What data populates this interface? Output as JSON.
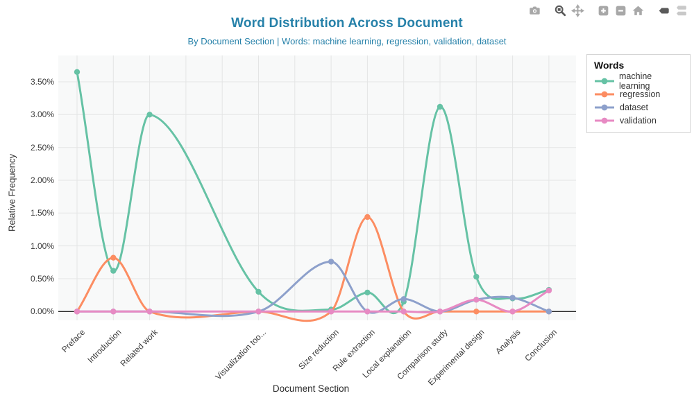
{
  "header": {
    "title": "Word Distribution Across Document",
    "subtitle": "By Document Section | Words: machine learning, regression, validation, dataset",
    "title_color": "#2681a9"
  },
  "modebar": {
    "icons": [
      {
        "name": "camera",
        "active": false
      },
      {
        "name": "zoom",
        "active": true
      },
      {
        "name": "pan",
        "active": false
      },
      {
        "name": "zoom-in",
        "active": false
      },
      {
        "name": "zoom-out",
        "active": false
      },
      {
        "name": "autoscale-home",
        "active": false
      },
      {
        "name": "hover-closest",
        "active": true
      },
      {
        "name": "hover-compare",
        "active": false
      }
    ],
    "color_inactive": "#a8a8a8",
    "color_active": "#5a5a5a"
  },
  "legend": {
    "title": "Words",
    "items": [
      {
        "label": "machine learning",
        "color": "#66c2a5"
      },
      {
        "label": "regression",
        "color": "#fc8d62"
      },
      {
        "label": "dataset",
        "color": "#8da0cb"
      },
      {
        "label": "validation",
        "color": "#e78ac3"
      }
    ]
  },
  "chart_data": {
    "type": "line",
    "line_shape": "spline",
    "title": "Word Distribution Across Document",
    "subtitle": "By Document Section | Words: machine learning, regression, validation, dataset",
    "xlabel": "Document Section",
    "ylabel": "Relative Frequency",
    "categories": [
      "Preface",
      "Introduction",
      "Related work",
      "Visualization too...",
      "Size reduction",
      "Rule extraction",
      "Local explanation",
      "Comparison study",
      "Experimental design",
      "Analysis",
      "Conclusion"
    ],
    "category_positions": [
      0,
      1,
      2,
      5,
      7,
      8,
      9,
      10,
      11,
      12,
      13
    ],
    "gridline_positions": [
      0,
      1,
      2,
      3,
      4,
      5,
      6,
      7,
      8,
      9,
      10,
      11,
      12,
      13
    ],
    "x_range": [
      -0.52,
      13.75
    ],
    "y_range_pct": [
      -0.135,
      3.9
    ],
    "y_ticks": [
      {
        "v": 0.0,
        "label": "0.00%"
      },
      {
        "v": 0.5,
        "label": "0.50%"
      },
      {
        "v": 1.0,
        "label": "1.00%"
      },
      {
        "v": 1.5,
        "label": "1.50%"
      },
      {
        "v": 2.0,
        "label": "2.00%"
      },
      {
        "v": 2.5,
        "label": "2.50%"
      },
      {
        "v": 3.0,
        "label": "3.00%"
      },
      {
        "v": 3.5,
        "label": "3.50%"
      }
    ],
    "series": [
      {
        "name": "machine learning",
        "color": "#66c2a5",
        "values": [
          3.65,
          0.62,
          3.0,
          0.3,
          0.03,
          0.29,
          0.15,
          3.12,
          0.53,
          0.2,
          0.33
        ]
      },
      {
        "name": "regression",
        "color": "#fc8d62",
        "values": [
          0,
          0.82,
          0,
          0,
          0,
          1.44,
          0,
          0,
          0,
          0,
          0
        ]
      },
      {
        "name": "dataset",
        "color": "#8da0cb",
        "values": [
          0,
          0,
          0,
          0,
          0.76,
          0,
          0.19,
          0,
          0.18,
          0.21,
          0
        ]
      },
      {
        "name": "validation",
        "color": "#e78ac3",
        "values": [
          0,
          0,
          0,
          0,
          0,
          0,
          0,
          0,
          0.18,
          0,
          0.32
        ]
      }
    ],
    "legend_title": "Words",
    "legend_position": "top-right-outside",
    "grid": true,
    "plot_bg": "#f8f9f9",
    "grid_color": "#e4e5e5",
    "zeroline_color": "#2a2a2a"
  }
}
